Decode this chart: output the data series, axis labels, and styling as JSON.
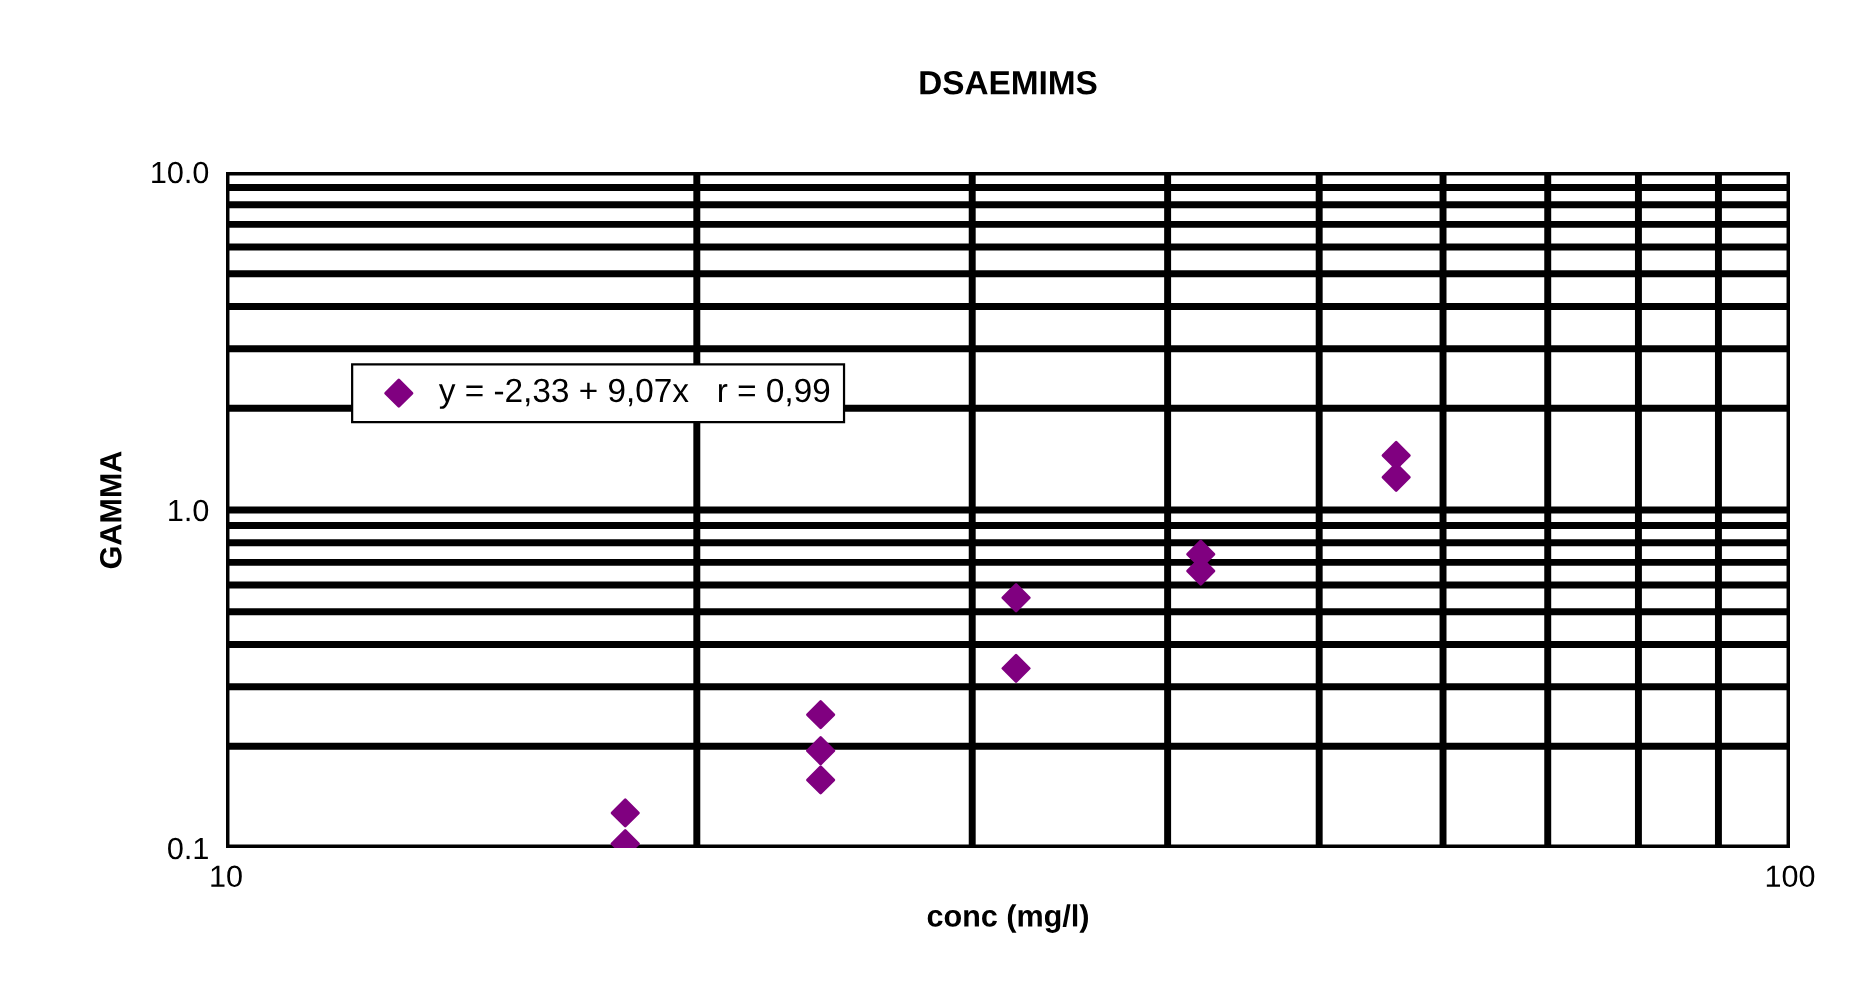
{
  "chart_data": {
    "type": "scatter",
    "title": "DSAEMIMS",
    "xlabel": "conc (mg/l)",
    "ylabel": "GAMMA",
    "log": "xy",
    "grid": true,
    "legend": "top left",
    "marker": "diamond",
    "xlim": [
      10,
      100
    ],
    "ylim": [
      0.1,
      10
    ],
    "xticks": [
      10,
      {
        "value": 20,
        "label": null
      },
      {
        "value": 30,
        "label": null
      },
      {
        "value": 40,
        "label": null
      },
      {
        "value": 50,
        "label": null
      },
      {
        "value": 60,
        "label": null
      },
      {
        "value": 70,
        "label": null
      },
      {
        "value": 80,
        "label": null
      },
      {
        "value": 90,
        "label": null
      },
      100
    ],
    "yticks": [
      {
        "value": 0.1,
        "label": "0.1"
      },
      {
        "value": 0.2,
        "label": null
      },
      {
        "value": 0.3,
        "label": null
      },
      {
        "value": 0.4,
        "label": null
      },
      {
        "value": 0.5,
        "label": null
      },
      {
        "value": 0.6,
        "label": null
      },
      {
        "value": 0.7,
        "label": null
      },
      {
        "value": 0.8,
        "label": null
      },
      {
        "value": 0.9,
        "label": null
      },
      {
        "value": 1,
        "label": "1.0"
      },
      {
        "value": 2,
        "label": null
      },
      {
        "value": 3,
        "label": null
      },
      {
        "value": 4,
        "label": null
      },
      {
        "value": 5,
        "label": null
      },
      {
        "value": 6,
        "label": null
      },
      {
        "value": 7,
        "label": null
      },
      {
        "value": 8,
        "label": null
      },
      {
        "value": 9,
        "label": null
      },
      {
        "value": 10,
        "label": "10.0"
      }
    ],
    "series": [
      {
        "name": "y = -2,33 + 9,07x   r = 0,99",
        "color": "#800080",
        "x": [
          18,
          18,
          24,
          24,
          24,
          32,
          32,
          42,
          42,
          56,
          56
        ],
        "values": [
          0.127,
          0.103,
          0.248,
          0.194,
          0.159,
          0.55,
          0.34,
          0.74,
          0.66,
          1.45,
          1.25
        ]
      }
    ]
  }
}
